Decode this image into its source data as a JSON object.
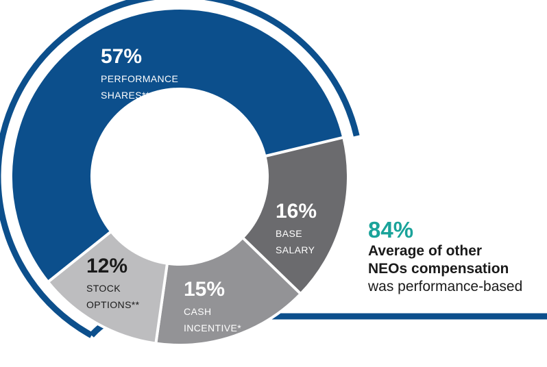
{
  "colors": {
    "ring": "#0c4f8c",
    "accent": "#1aa39a",
    "slice_text_light": "#ffffff",
    "slice_text_dark": "#1a1a1a"
  },
  "chart_data": {
    "type": "pie",
    "variant": "donut",
    "slices": [
      {
        "pct_label": "57%",
        "value": 57,
        "label_lines": [
          "PERFORMANCE",
          "SHARES***"
        ],
        "color": "#0c4f8c",
        "text_color": "#ffffff"
      },
      {
        "pct_label": "16%",
        "value": 16,
        "label_lines": [
          "BASE",
          "SALARY"
        ],
        "color": "#6b6b6e",
        "text_color": "#ffffff"
      },
      {
        "pct_label": "15%",
        "value": 15,
        "label_lines": [
          "CASH",
          "INCENTIVE*"
        ],
        "color": "#939396",
        "text_color": "#ffffff"
      },
      {
        "pct_label": "12%",
        "value": 12,
        "label_lines": [
          "STOCK",
          "OPTIONS**"
        ],
        "color": "#bdbdbf",
        "text_color": "#1a1a1a"
      }
    ]
  },
  "callout": {
    "pct": "84%",
    "line1": "Average of other",
    "line2": "NEOs compensation",
    "line3": "was performance-based"
  }
}
